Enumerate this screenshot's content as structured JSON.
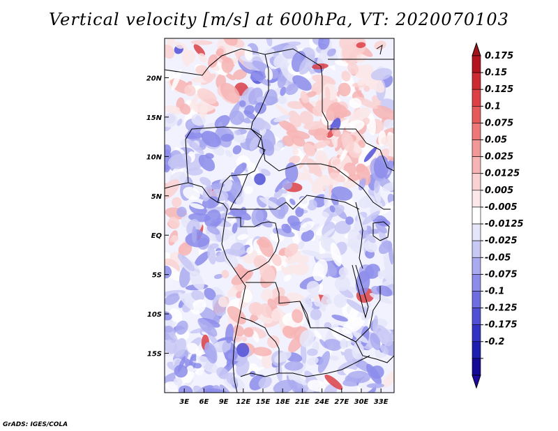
{
  "title": "Vertical velocity [m/s] at 600hPa, VT: 2020070103",
  "footer": "GrADS: IGES/COLA",
  "map": {
    "lon_range": [
      0,
      35
    ],
    "lat_range": [
      -20,
      25
    ],
    "x_ticks": [
      "3E",
      "6E",
      "9E",
      "12E",
      "15E",
      "18E",
      "21E",
      "24E",
      "27E",
      "30E",
      "33E"
    ],
    "x_tick_values": [
      3,
      6,
      9,
      12,
      15,
      18,
      21,
      24,
      27,
      30,
      33
    ],
    "y_ticks": [
      "20N",
      "15N",
      "10N",
      "5N",
      "EQ",
      "5S",
      "10S",
      "15S"
    ],
    "y_tick_values": [
      20,
      15,
      10,
      5,
      0,
      -5,
      -10,
      -15
    ]
  },
  "colorbar": {
    "labels": [
      "0.175",
      "0.15",
      "0.125",
      "0.1",
      "0.075",
      "0.05",
      "0.025",
      "0.0125",
      "0.005",
      "-0.005",
      "-0.0125",
      "-0.025",
      "-0.05",
      "-0.075",
      "-0.1",
      "-0.125",
      "-0.175",
      "-0.2"
    ],
    "colors": [
      "#b4141e",
      "#cd2b32",
      "#dc4146",
      "#e65a5a",
      "#ee7878",
      "#f29898",
      "#f7b4b4",
      "#fad2d2",
      "#fce8e8",
      "#ffffff",
      "#e6e6fa",
      "#c8c8f5",
      "#aaaaf0",
      "#8c8ceb",
      "#6e6ee1",
      "#5050d7",
      "#3232c3",
      "#1e1eaf",
      "#140a96"
    ],
    "top_color": "#a0141a",
    "bottom_color": "#1e0aa0"
  }
}
